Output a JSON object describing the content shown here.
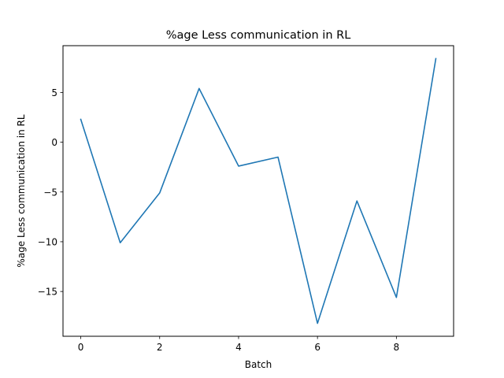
{
  "chart_data": {
    "type": "line",
    "title": "%age Less communication in RL",
    "xlabel": "Batch",
    "ylabel": "%age Less communication in RL",
    "x": [
      0,
      1,
      2,
      3,
      4,
      5,
      6,
      7,
      8,
      9
    ],
    "series": [
      {
        "values": [
          2.3,
          -10.1,
          -5.1,
          5.4,
          -2.4,
          -1.5,
          -18.2,
          -5.9,
          -15.6,
          8.4
        ],
        "color": "#1f77b4"
      }
    ],
    "xlim": [
      -0.45,
      9.45
    ],
    "ylim": [
      -19.5,
      9.7
    ],
    "xticks": [
      0,
      2,
      4,
      6,
      8
    ],
    "xtick_labels": [
      "0",
      "2",
      "4",
      "6",
      "8"
    ],
    "yticks": [
      -15,
      -10,
      -5,
      0,
      5
    ],
    "ytick_labels": [
      "−15",
      "−10",
      "−5",
      "0",
      "5"
    ],
    "grid": false,
    "legend": null
  }
}
